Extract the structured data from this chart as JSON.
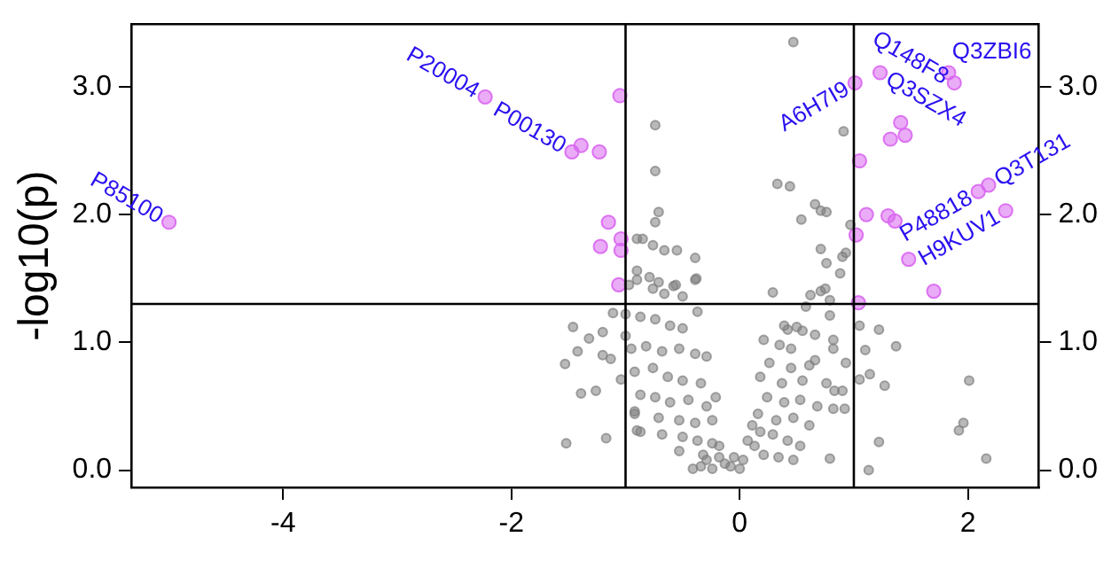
{
  "chart_data": {
    "type": "scatter",
    "ylabel": "-log10(p)",
    "xlim": [
      -5.33,
      2.62
    ],
    "xticks": [
      -4,
      -2,
      0,
      2
    ],
    "ylim": [
      -0.135,
      3.49
    ],
    "yticks": [
      {
        "value": 0,
        "label": "0.0"
      },
      {
        "value": 1,
        "label": "1.0"
      },
      {
        "value": 2,
        "label": "2.0"
      },
      {
        "value": 3,
        "label": "3.0"
      }
    ],
    "y2lim": [
      -0.135,
      3.49
    ],
    "y2ticks": [
      {
        "value": 0,
        "label": "0.0"
      },
      {
        "value": 1,
        "label": "1.0"
      },
      {
        "value": 2,
        "label": "2.0"
      },
      {
        "value": 3,
        "label": "3.0"
      }
    ],
    "grid": false,
    "legend": false,
    "marker": "circle",
    "ref_lines": [
      {
        "axis": "x",
        "value": -1,
        "color": "#000000"
      },
      {
        "axis": "x",
        "value": 1,
        "color": "#000000"
      },
      {
        "axis": "y",
        "value": 1.3,
        "color": "#000000"
      }
    ],
    "series": [
      {
        "color": "#7f7f7f",
        "x": [
          0.47,
          -0.74,
          -0.74,
          0.91,
          0.33,
          0.44,
          0.54,
          0.66,
          0.71,
          0.76,
          -0.71,
          -0.74,
          -0.85,
          -0.76,
          -0.66,
          -0.55,
          -0.39,
          -0.38,
          0.71,
          0.76,
          0.9,
          0.93,
          0.88,
          0.97,
          -0.9,
          -0.79,
          -0.71,
          -0.56,
          -1.46,
          -1.2,
          -1.32,
          -1.42,
          -1.2,
          -1.13,
          -1.53,
          -1.04,
          -1.39,
          -1.26,
          -1.52,
          -1.17,
          -1.11,
          -0.92,
          -0.9,
          -1.0,
          -0.9,
          1.05,
          1.22,
          1.37,
          1.1,
          1.14,
          1.05,
          1.27,
          2.01,
          1.96,
          1.92,
          2.16,
          1.22,
          1.13,
          0.29,
          0.62,
          0.71,
          0.75,
          0.79,
          0.58,
          0.79,
          0.39,
          0.42,
          0.5,
          0.55,
          0.66,
          0.82,
          0.82,
          0.93,
          0.21,
          0.35,
          0.45,
          0.26,
          0.45,
          0.61,
          0.66,
          0.18,
          0.37,
          0.55,
          0.76,
          0.83,
          0.9,
          0.24,
          0.39,
          0.53,
          0.68,
          0.82,
          0.92,
          0.16,
          0.32,
          0.47,
          0.61,
          0.11,
          0.18,
          0.29,
          0.42,
          0.53,
          0.34,
          0.47,
          0.79,
          0.07,
          0.13,
          0.21,
          -0.08,
          0,
          -0.13,
          0.03,
          -0.18,
          -0.24,
          -0.34,
          -0.05,
          -0.97,
          -0.9,
          -0.76,
          -0.66,
          -0.58,
          -0.5,
          -0.39,
          -1.0,
          -0.87,
          -0.74,
          -0.61,
          -0.5,
          -0.37,
          -0.95,
          -0.82,
          -0.68,
          -0.53,
          -0.39,
          -0.29,
          -0.92,
          -0.76,
          -0.63,
          -0.5,
          -0.34,
          -0.87,
          -0.74,
          -0.61,
          -0.45,
          -0.29,
          -0.21,
          -0.92,
          -0.71,
          -0.53,
          -0.39,
          -0.24,
          -0.87,
          -0.68,
          -0.5,
          -0.37,
          -0.24,
          -0.53,
          -0.32,
          -0.18,
          -0.41,
          -0.29
        ],
        "values": [
          3.35,
          2.7,
          2.34,
          2.65,
          2.24,
          2.22,
          1.96,
          2.08,
          2.03,
          2.02,
          2.02,
          1.94,
          1.81,
          1.76,
          1.72,
          1.72,
          1.66,
          1.5,
          1.73,
          1.62,
          1.67,
          1.7,
          1.54,
          1.92,
          1.56,
          1.51,
          1.47,
          1.45,
          1.12,
          1.08,
          1.03,
          0.93,
          0.9,
          0.87,
          0.83,
          0.71,
          0.6,
          0.62,
          0.21,
          0.25,
          1.23,
          0.44,
          0.31,
          1.05,
          1.81,
          1.13,
          1.1,
          0.97,
          0.94,
          0.75,
          0.71,
          0.66,
          0.7,
          0.37,
          0.31,
          0.09,
          0.22,
          0.0,
          1.39,
          1.37,
          1.4,
          1.42,
          1.33,
          1.28,
          1.21,
          1.13,
          1.1,
          1.12,
          1.09,
          1.06,
          1.02,
          0.95,
          0.84,
          1.02,
          0.98,
          0.95,
          0.84,
          0.8,
          0.82,
          0.86,
          0.73,
          0.68,
          0.7,
          0.68,
          0.62,
          0.62,
          0.57,
          0.53,
          0.55,
          0.5,
          0.48,
          0.48,
          0.44,
          0.39,
          0.41,
          0.35,
          0.35,
          0.3,
          0.28,
          0.23,
          0.19,
          0.1,
          0.08,
          0.09,
          0.23,
          0.19,
          0.12,
          0.03,
          0.01,
          0.05,
          0.08,
          0.1,
          0.01,
          0.03,
          0.1,
          1.45,
          1.49,
          1.42,
          1.38,
          1.44,
          1.36,
          1.49,
          1.22,
          1.2,
          1.18,
          1.13,
          1.11,
          1.24,
          0.95,
          0.97,
          0.93,
          0.95,
          0.91,
          0.89,
          0.77,
          0.8,
          0.73,
          0.7,
          0.68,
          0.59,
          0.57,
          0.53,
          0.55,
          0.5,
          0.57,
          0.46,
          0.41,
          0.39,
          0.37,
          0.39,
          0.3,
          0.28,
          0.26,
          0.23,
          0.21,
          0.15,
          0.12,
          0.19,
          0.01,
          0.08
        ]
      },
      {
        "color": "#d966f0",
        "x": [
          -5.0,
          -2.23,
          -1.47,
          -1.39,
          -1.23,
          -1.05,
          -1.15,
          -1.04,
          -1.22,
          -1.04,
          -1.06,
          1.01,
          1.23,
          1.83,
          1.88,
          1.41,
          1.45,
          1.32,
          1.05,
          2.09,
          2.18,
          2.33,
          1.11,
          1.3,
          1.36,
          1.02,
          1.48,
          1.7,
          1.04
        ],
        "values": [
          1.94,
          2.92,
          2.49,
          2.54,
          2.49,
          2.93,
          1.94,
          1.81,
          1.75,
          1.72,
          1.45,
          3.03,
          3.11,
          3.11,
          3.03,
          2.72,
          2.62,
          2.59,
          2.42,
          2.18,
          2.23,
          2.03,
          2.0,
          1.99,
          1.95,
          1.84,
          1.65,
          1.4,
          1.31
        ]
      }
    ],
    "annotations": [
      {
        "text": "P85100",
        "x": -5.0,
        "y": 1.94
      },
      {
        "text": "P20004",
        "x": -2.23,
        "y": 2.92
      },
      {
        "text": "P00130",
        "x": -1.47,
        "y": 2.49
      },
      {
        "text": "A6H7I9",
        "x": 1.01,
        "y": 3.03
      },
      {
        "text": "Q3SZX4",
        "x": 1.23,
        "y": 3.11
      },
      {
        "text": "Q3ZBI6",
        "x": 1.83,
        "y": 3.11
      },
      {
        "text": "Q148F8",
        "x": 1.88,
        "y": 3.03
      },
      {
        "text": "P48818",
        "x": 2.09,
        "y": 2.18
      },
      {
        "text": "Q3T131",
        "x": 2.18,
        "y": 2.23
      },
      {
        "text": "H9KUV1",
        "x": 2.33,
        "y": 2.03
      }
    ]
  }
}
